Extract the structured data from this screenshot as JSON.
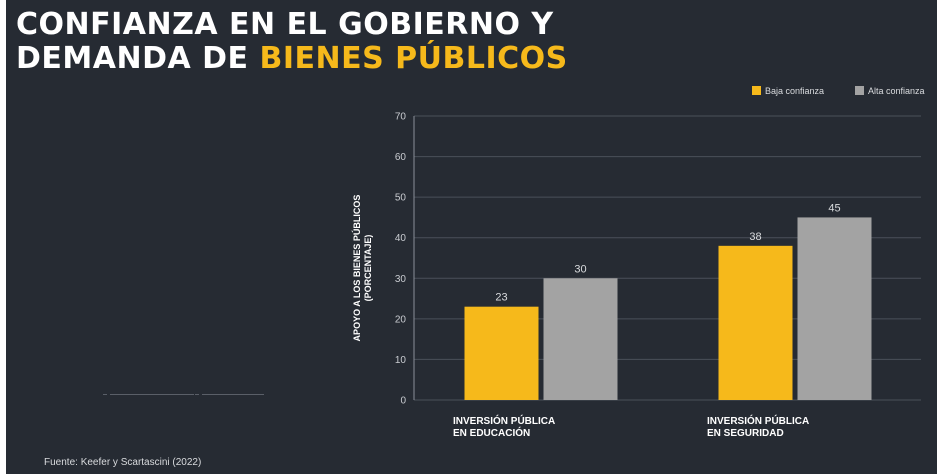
{
  "title": {
    "line1": "CONFIANZA EN EL GOBIERNO Y",
    "line2_prefix": "DEMANDA DE ",
    "line2_accent": "BIENES PÚBLICOS"
  },
  "source": "Fuente: Keefer y Scartascini (2022)",
  "colors": {
    "background": "#262b33",
    "accent": "#f6b91b",
    "series_low": "#f6b91b",
    "series_high": "#a3a3a3",
    "grid": "#4a505a"
  },
  "chart_data": {
    "type": "bar",
    "categories": [
      [
        "INVERSIÓN PÚBLICA",
        "EN EDUCACIÓN"
      ],
      [
        "INVERSIÓN PÚBLICA",
        "EN SEGURIDAD"
      ]
    ],
    "series": [
      {
        "name": "Baja confianza",
        "values": [
          23,
          38
        ]
      },
      {
        "name": "Alta confianza",
        "values": [
          30,
          45
        ]
      }
    ],
    "ylabel": [
      "APOYO A LOS BIENES PÚBLICOS",
      "(PORCENTAJE)"
    ],
    "ylim": [
      0,
      70
    ],
    "yticks": [
      0,
      10,
      20,
      30,
      40,
      50,
      60,
      70
    ],
    "grid": true,
    "legend_position": "top-right",
    "data_labels": true
  }
}
